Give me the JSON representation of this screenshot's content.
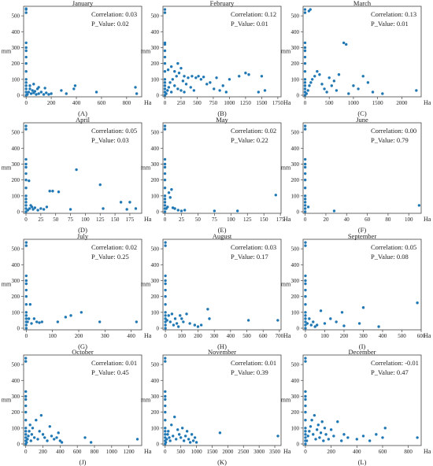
{
  "figure": {
    "accent_color": "#1f77b4",
    "shared_ylabel": "mm",
    "shared_xlabel": "Ha",
    "corr_prefix": "Correlation: ",
    "p_prefix": "P_Value: "
  },
  "chart_data": [
    {
      "type": "scatter",
      "title": "January",
      "panel_label": "(A)",
      "correlation": "0.03",
      "p_value": "0.02",
      "xlabel": "Ha",
      "ylabel": "mm",
      "xlim": [
        -20,
        920
      ],
      "ylim": [
        -10,
        560
      ],
      "xticks": [
        0,
        200,
        400,
        600,
        800
      ],
      "yticks": [
        0,
        100,
        200,
        300,
        400,
        500
      ],
      "x": [
        0,
        0,
        0,
        0,
        0,
        0,
        0,
        0,
        0,
        0,
        0,
        0,
        0,
        0,
        0,
        10,
        20,
        30,
        40,
        50,
        60,
        70,
        80,
        90,
        100,
        120,
        140,
        160,
        180,
        200,
        30,
        60,
        100,
        150,
        280,
        320,
        380,
        390,
        560,
        870,
        880
      ],
      "y": [
        0,
        20,
        40,
        60,
        80,
        100,
        150,
        200,
        240,
        280,
        300,
        330,
        520,
        540,
        545,
        5,
        20,
        40,
        10,
        30,
        15,
        25,
        5,
        40,
        10,
        20,
        5,
        15,
        5,
        10,
        60,
        70,
        50,
        45,
        30,
        10,
        40,
        60,
        20,
        50,
        10
      ]
    },
    {
      "type": "scatter",
      "title": "February",
      "panel_label": "(B)",
      "correlation": "0.12",
      "p_value": "0.01",
      "xlabel": "Ha",
      "ylabel": "mm",
      "xlim": [
        -30,
        1800
      ],
      "ylim": [
        -10,
        560
      ],
      "xticks": [
        0,
        250,
        500,
        750,
        1000,
        1250,
        1500,
        1750
      ],
      "yticks": [
        0,
        100,
        200,
        300,
        400,
        500
      ],
      "x": [
        0,
        0,
        0,
        0,
        0,
        0,
        0,
        0,
        0,
        0,
        0,
        0,
        0,
        0,
        20,
        40,
        60,
        80,
        100,
        120,
        150,
        180,
        200,
        220,
        250,
        280,
        300,
        330,
        360,
        400,
        420,
        450,
        50,
        100,
        150,
        200,
        250,
        300,
        480,
        520,
        560,
        600,
        650,
        700,
        760,
        800,
        850,
        900,
        950,
        1000,
        1150,
        1250,
        1300,
        1450,
        1500,
        1550
      ],
      "y": [
        0,
        20,
        40,
        60,
        80,
        100,
        150,
        200,
        240,
        280,
        320,
        330,
        520,
        540,
        10,
        30,
        50,
        80,
        20,
        100,
        60,
        120,
        40,
        140,
        30,
        90,
        20,
        70,
        110,
        50,
        120,
        30,
        160,
        180,
        150,
        200,
        170,
        120,
        110,
        120,
        100,
        115,
        70,
        80,
        40,
        110,
        30,
        60,
        20,
        100,
        120,
        140,
        130,
        20,
        120,
        30
      ]
    },
    {
      "type": "scatter",
      "title": "March",
      "panel_label": "(C)",
      "correlation": "0.13",
      "p_value": "0.01",
      "xlabel": "Ha",
      "ylabel": "mm",
      "xlim": [
        -40,
        2400
      ],
      "ylim": [
        -10,
        560
      ],
      "xticks": [
        0,
        500,
        1000,
        1500,
        2000
      ],
      "yticks": [
        0,
        100,
        200,
        300,
        400,
        500
      ],
      "x": [
        0,
        0,
        0,
        0,
        0,
        0,
        0,
        0,
        0,
        0,
        0,
        0,
        0,
        0,
        30,
        60,
        90,
        120,
        150,
        200,
        250,
        300,
        350,
        400,
        450,
        500,
        550,
        600,
        80,
        110,
        650,
        700,
        800,
        850,
        900,
        1000,
        1100,
        1200,
        1300,
        1400,
        1600,
        2300
      ],
      "y": [
        0,
        20,
        40,
        60,
        80,
        100,
        150,
        200,
        240,
        280,
        300,
        330,
        520,
        540,
        10,
        30,
        60,
        80,
        100,
        120,
        150,
        130,
        70,
        40,
        20,
        110,
        60,
        90,
        530,
        540,
        30,
        130,
        330,
        320,
        10,
        60,
        40,
        120,
        80,
        20,
        10,
        30
      ]
    },
    {
      "type": "scatter",
      "title": "April",
      "panel_label": "(D)",
      "correlation": "0.05",
      "p_value": "0.03",
      "xlabel": "Ha",
      "ylabel": "mm",
      "xlim": [
        -4,
        195
      ],
      "ylim": [
        -10,
        560
      ],
      "xticks": [
        0,
        25,
        50,
        75,
        100,
        125,
        150,
        175
      ],
      "yticks": [
        0,
        100,
        200,
        300,
        400,
        500
      ],
      "x": [
        0,
        0,
        0,
        0,
        0,
        0,
        0,
        0,
        0,
        0,
        0,
        0,
        0,
        0,
        3,
        5,
        6,
        8,
        10,
        12,
        15,
        20,
        25,
        30,
        35,
        40,
        45,
        55,
        75,
        85,
        125,
        130,
        160,
        170,
        175,
        185
      ],
      "y": [
        0,
        20,
        40,
        60,
        80,
        100,
        150,
        200,
        240,
        280,
        300,
        330,
        520,
        540,
        10,
        195,
        20,
        40,
        30,
        15,
        25,
        10,
        20,
        15,
        30,
        130,
        130,
        125,
        15,
        265,
        170,
        20,
        60,
        15,
        60,
        20
      ]
    },
    {
      "type": "scatter",
      "title": "May",
      "panel_label": "(E)",
      "correlation": "0.02",
      "p_value": "0.22",
      "xlabel": "Ha",
      "ylabel": "mm",
      "xlim": [
        -3,
        176
      ],
      "ylim": [
        -10,
        560
      ],
      "xticks": [
        0,
        25,
        50,
        75,
        100,
        125,
        150,
        175
      ],
      "yticks": [
        0,
        100,
        200,
        300,
        400,
        500
      ],
      "x": [
        0,
        0,
        0,
        0,
        0,
        0,
        0,
        0,
        0,
        0,
        0,
        0,
        0,
        0,
        2,
        4,
        6,
        8,
        10,
        12,
        15,
        20,
        25,
        30,
        75,
        110,
        168
      ],
      "y": [
        0,
        20,
        40,
        60,
        80,
        100,
        150,
        200,
        240,
        280,
        300,
        330,
        520,
        540,
        20,
        30,
        120,
        90,
        140,
        25,
        20,
        10,
        5,
        10,
        5,
        5,
        105
      ]
    },
    {
      "type": "scatter",
      "title": "June",
      "panel_label": "(F)",
      "correlation": "0.00",
      "p_value": "0.79",
      "xlabel": "Ha",
      "ylabel": "mm",
      "xlim": [
        -2,
        112
      ],
      "ylim": [
        -10,
        560
      ],
      "xticks": [
        0,
        20,
        40,
        60,
        80,
        100
      ],
      "yticks": [
        0,
        100,
        200,
        300,
        400,
        500
      ],
      "x": [
        0,
        0,
        0,
        0,
        0,
        0,
        0,
        0,
        0,
        0,
        0,
        0,
        0,
        0,
        3,
        28,
        110
      ],
      "y": [
        0,
        20,
        40,
        60,
        80,
        100,
        150,
        200,
        240,
        280,
        300,
        330,
        520,
        540,
        30,
        5,
        40
      ]
    },
    {
      "type": "scatter",
      "title": "July",
      "panel_label": "(G)",
      "correlation": "0.02",
      "p_value": "0.25",
      "xlabel": "Ha",
      "ylabel": "mm",
      "xlim": [
        -10,
        440
      ],
      "ylim": [
        -10,
        560
      ],
      "xticks": [
        0,
        100,
        200,
        300,
        400
      ],
      "yticks": [
        0,
        100,
        200,
        300,
        400,
        500
      ],
      "x": [
        0,
        0,
        0,
        0,
        0,
        0,
        0,
        0,
        0,
        0,
        0,
        0,
        0,
        0,
        5,
        10,
        15,
        20,
        30,
        40,
        50,
        60,
        120,
        150,
        170,
        210,
        280,
        420
      ],
      "y": [
        0,
        20,
        40,
        60,
        80,
        100,
        150,
        200,
        240,
        280,
        300,
        330,
        520,
        540,
        40,
        60,
        150,
        30,
        60,
        40,
        35,
        40,
        40,
        70,
        80,
        100,
        40,
        40
      ]
    },
    {
      "type": "scatter",
      "title": "August",
      "panel_label": "(H)",
      "correlation": "0.03",
      "p_value": "0.17",
      "xlabel": "Ha",
      "ylabel": "mm",
      "xlim": [
        -15,
        710
      ],
      "ylim": [
        -10,
        560
      ],
      "xticks": [
        0,
        100,
        200,
        300,
        400,
        500,
        600,
        700
      ],
      "yticks": [
        0,
        100,
        200,
        300,
        400,
        500
      ],
      "x": [
        0,
        0,
        0,
        0,
        0,
        0,
        0,
        0,
        0,
        0,
        0,
        0,
        0,
        0,
        10,
        20,
        30,
        40,
        50,
        60,
        70,
        80,
        90,
        100,
        110,
        130,
        150,
        180,
        200,
        220,
        260,
        270,
        510,
        690
      ],
      "y": [
        0,
        20,
        40,
        60,
        80,
        100,
        150,
        200,
        240,
        280,
        300,
        330,
        520,
        540,
        50,
        80,
        40,
        90,
        20,
        60,
        30,
        10,
        80,
        60,
        40,
        90,
        30,
        20,
        10,
        20,
        120,
        60,
        50,
        50
      ]
    },
    {
      "type": "scatter",
      "title": "September",
      "panel_label": "(I)",
      "correlation": "0.05",
      "p_value": "0.08",
      "xlabel": "Ha",
      "ylabel": "mm",
      "xlim": [
        -12,
        600
      ],
      "ylim": [
        -10,
        560
      ],
      "xticks": [
        0,
        100,
        200,
        300,
        400,
        500,
        600
      ],
      "yticks": [
        0,
        100,
        200,
        300,
        400,
        500
      ],
      "x": [
        0,
        0,
        0,
        0,
        0,
        0,
        0,
        0,
        0,
        0,
        0,
        0,
        0,
        0,
        10,
        20,
        30,
        40,
        50,
        60,
        80,
        100,
        130,
        160,
        190,
        200,
        280,
        300,
        380,
        580
      ],
      "y": [
        0,
        20,
        40,
        60,
        80,
        100,
        150,
        200,
        240,
        280,
        300,
        330,
        520,
        540,
        30,
        60,
        20,
        40,
        10,
        20,
        110,
        30,
        60,
        40,
        100,
        15,
        30,
        130,
        10,
        160
      ]
    },
    {
      "type": "scatter",
      "title": "October",
      "panel_label": "(J)",
      "correlation": "0.01",
      "p_value": "0.45",
      "xlabel": "Ha",
      "ylabel": "mm",
      "xlim": [
        -25,
        1350
      ],
      "ylim": [
        -10,
        560
      ],
      "xticks": [
        0,
        200,
        400,
        600,
        800,
        1000,
        1200
      ],
      "yticks": [
        0,
        100,
        200,
        300,
        400,
        500
      ],
      "x": [
        0,
        0,
        0,
        0,
        0,
        0,
        0,
        0,
        0,
        0,
        0,
        0,
        0,
        0,
        10,
        20,
        30,
        40,
        50,
        60,
        70,
        80,
        100,
        120,
        140,
        160,
        180,
        200,
        220,
        250,
        280,
        300,
        330,
        360,
        380,
        400,
        420,
        690,
        760,
        1300
      ],
      "y": [
        0,
        20,
        40,
        60,
        80,
        100,
        150,
        200,
        240,
        280,
        300,
        330,
        520,
        540,
        10,
        30,
        50,
        80,
        120,
        20,
        60,
        100,
        40,
        150,
        30,
        80,
        180,
        60,
        40,
        20,
        110,
        50,
        30,
        40,
        70,
        20,
        10,
        40,
        10,
        30
      ]
    },
    {
      "type": "scatter",
      "title": "November",
      "panel_label": "(K)",
      "correlation": "0.01",
      "p_value": "0.39",
      "xlabel": "Ha",
      "ylabel": "mm",
      "xlim": [
        -70,
        3700
      ],
      "ylim": [
        -10,
        560
      ],
      "xticks": [
        0,
        500,
        1000,
        1500,
        2000,
        2500,
        3000,
        3500
      ],
      "yticks": [
        0,
        100,
        200,
        300,
        400,
        500
      ],
      "x": [
        0,
        0,
        0,
        0,
        0,
        0,
        0,
        0,
        0,
        0,
        0,
        0,
        0,
        0,
        20,
        50,
        80,
        100,
        130,
        160,
        200,
        250,
        300,
        350,
        400,
        450,
        500,
        550,
        600,
        650,
        700,
        750,
        800,
        850,
        900,
        950,
        1000,
        1750,
        3600
      ],
      "y": [
        0,
        20,
        40,
        60,
        80,
        100,
        150,
        200,
        240,
        280,
        300,
        330,
        520,
        540,
        10,
        30,
        60,
        80,
        40,
        20,
        120,
        50,
        170,
        30,
        90,
        60,
        40,
        100,
        20,
        50,
        80,
        30,
        10,
        60,
        20,
        40,
        10,
        70,
        50
      ]
    },
    {
      "type": "scatter",
      "title": "December",
      "panel_label": "(L)",
      "correlation": "-0.01",
      "p_value": "0.47",
      "xlabel": "Ha",
      "ylabel": "mm",
      "xlim": [
        -18,
        900
      ],
      "ylim": [
        -10,
        560
      ],
      "xticks": [
        0,
        200,
        400,
        600,
        800
      ],
      "yticks": [
        0,
        100,
        200,
        300,
        400,
        500
      ],
      "x": [
        0,
        0,
        0,
        0,
        0,
        0,
        0,
        0,
        0,
        0,
        0,
        0,
        0,
        0,
        10,
        20,
        30,
        40,
        50,
        60,
        70,
        80,
        90,
        100,
        110,
        120,
        130,
        140,
        150,
        160,
        180,
        200,
        220,
        250,
        280,
        300,
        330,
        400,
        450,
        500,
        550,
        600,
        620,
        870
      ],
      "y": [
        0,
        20,
        40,
        60,
        80,
        100,
        150,
        200,
        240,
        280,
        300,
        330,
        520,
        540,
        20,
        50,
        80,
        110,
        150,
        60,
        180,
        30,
        90,
        120,
        40,
        70,
        140,
        20,
        100,
        60,
        30,
        90,
        50,
        140,
        20,
        60,
        40,
        30,
        50,
        20,
        60,
        40,
        100,
        40
      ]
    }
  ]
}
